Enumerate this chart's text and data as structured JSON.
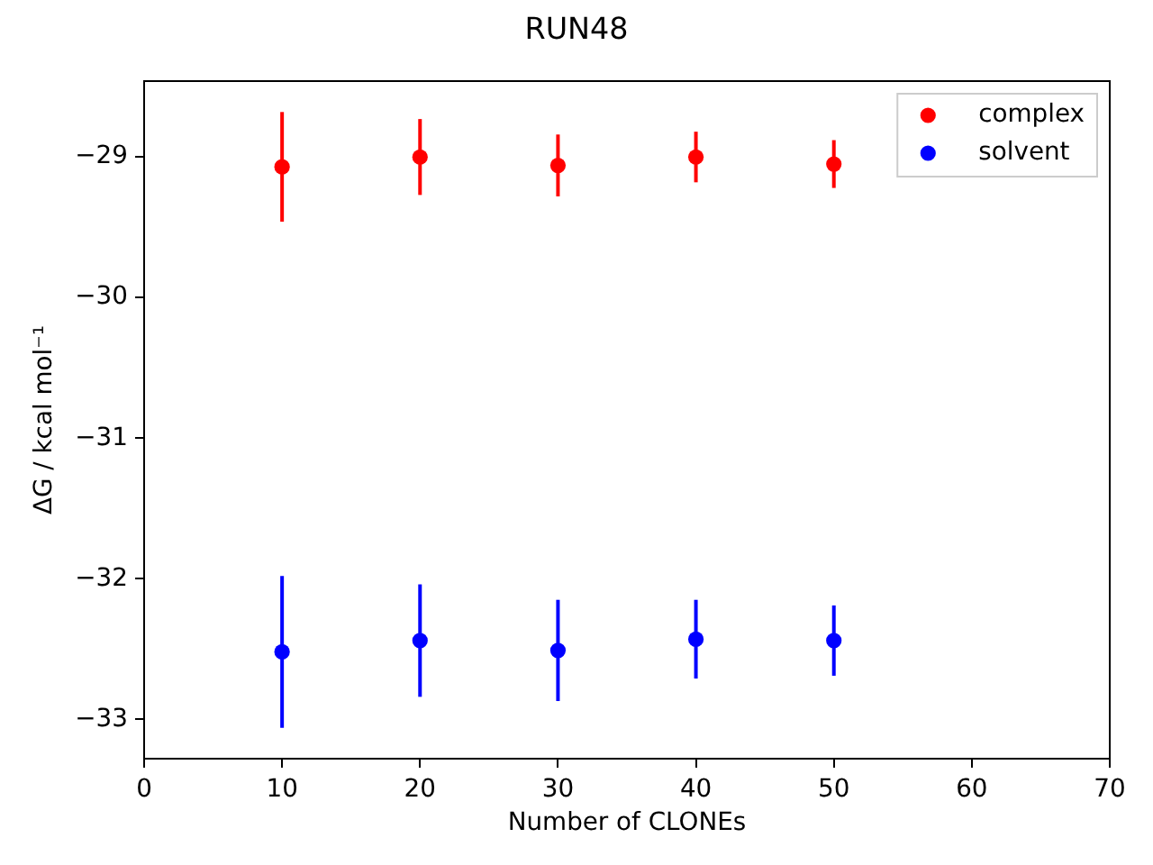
{
  "chart_data": {
    "type": "scatter",
    "title": "RUN48",
    "xlabel": "Number of CLONEs",
    "ylabel": "ΔG / kcal mol⁻¹",
    "x": [
      10,
      20,
      30,
      40,
      50
    ],
    "series": [
      {
        "name": "complex",
        "color": "#ff0000",
        "values": [
          -29.07,
          -29.0,
          -29.06,
          -29.0,
          -29.05
        ],
        "errors": [
          0.39,
          0.27,
          0.22,
          0.18,
          0.17
        ]
      },
      {
        "name": "solvent",
        "color": "#0000ff",
        "values": [
          -32.52,
          -32.44,
          -32.51,
          -32.43,
          -32.44
        ],
        "errors": [
          0.54,
          0.4,
          0.36,
          0.28,
          0.25
        ]
      }
    ],
    "xlim": [
      0,
      70
    ],
    "xticks": [
      0,
      10,
      20,
      30,
      40,
      50,
      60,
      70
    ],
    "ylim": [
      -33.28,
      -28.46
    ],
    "yticks": [
      -33,
      -32,
      -31,
      -30,
      -29
    ],
    "legend": "top right",
    "marker": "circle"
  }
}
